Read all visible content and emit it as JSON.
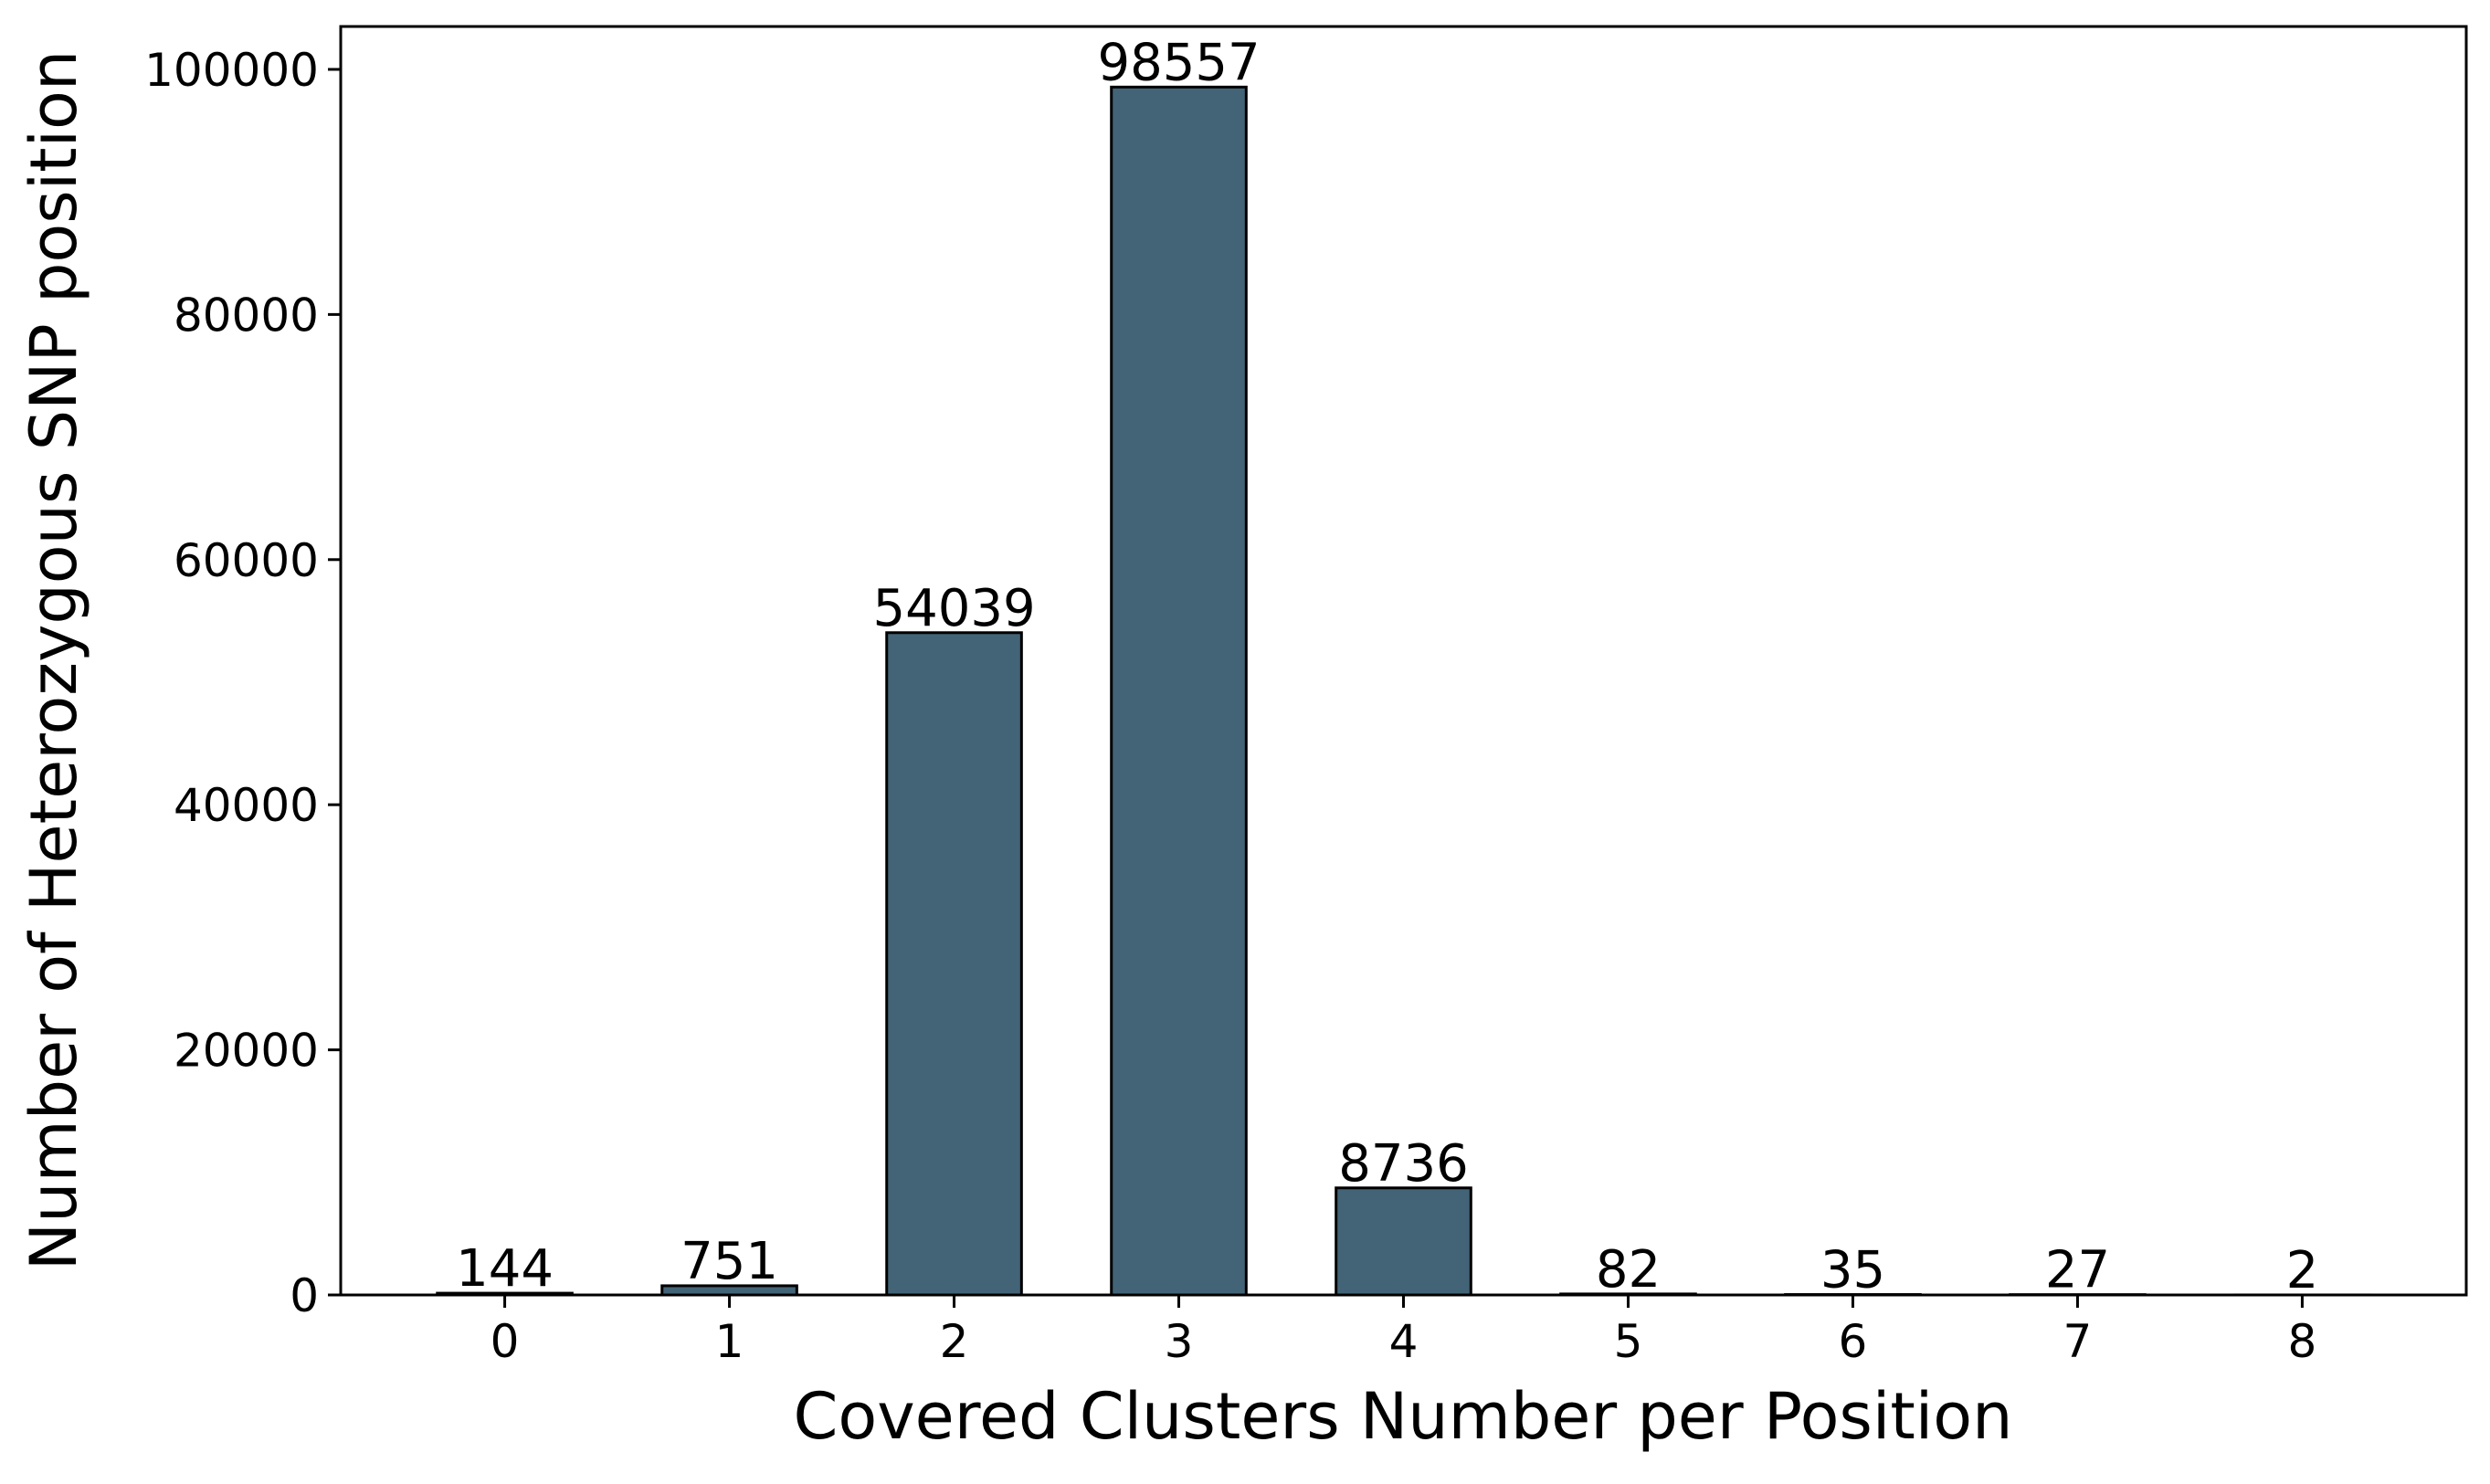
{
  "chart_data": {
    "type": "bar",
    "title": "",
    "xlabel": "Covered Clusters Number per Position",
    "ylabel": "Number of Heterozygous SNP position",
    "categories": [
      "0",
      "1",
      "2",
      "3",
      "4",
      "5",
      "6",
      "7",
      "8"
    ],
    "values": [
      144,
      751,
      54039,
      98557,
      8736,
      82,
      35,
      27,
      2
    ],
    "data_labels": [
      "144",
      "751",
      "54039",
      "98557",
      "8736",
      "82",
      "35",
      "27",
      "2"
    ],
    "yticks": [
      0,
      20000,
      40000,
      60000,
      80000,
      100000
    ],
    "ytick_labels": [
      "0",
      "20000",
      "40000",
      "60000",
      "80000",
      "100000"
    ],
    "ylim": [
      0,
      103500
    ],
    "xlim": [
      -0.73,
      8.73
    ],
    "grid": false,
    "legend": "none",
    "colors": {
      "bar_fill": "#426476",
      "bar_edge": "#000000",
      "axis": "#000000",
      "background": "#ffffff"
    }
  }
}
